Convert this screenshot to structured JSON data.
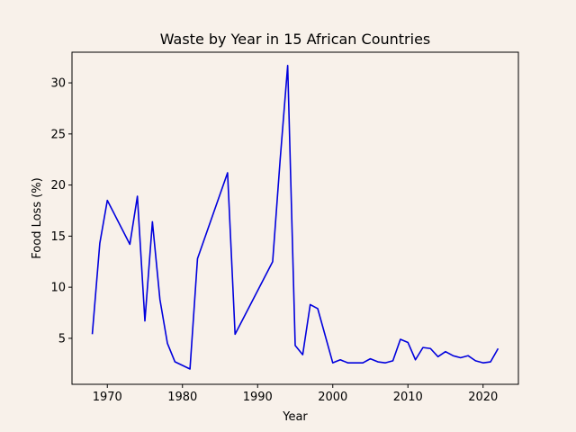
{
  "chart_data": {
    "type": "line",
    "title": "Waste by Year in 15 African Countries",
    "xlabel": "Year",
    "ylabel": "Food Loss (%)",
    "xlim": [
      1965.3,
      2024.7
    ],
    "ylim": [
      0.5,
      33
    ],
    "xticks": [
      1970,
      1980,
      1990,
      2000,
      2010,
      2020
    ],
    "yticks": [
      5,
      10,
      15,
      20,
      25,
      30
    ],
    "grid": false,
    "line_color": "#0000dd",
    "background": "#f8f1ea",
    "series": [
      {
        "x": [
          1968,
          1969,
          1970,
          1973,
          1974,
          1975,
          1976,
          1977,
          1978,
          1979,
          1981,
          1982,
          1986,
          1987,
          1992,
          1993,
          1994,
          1995,
          1996,
          1997,
          1998,
          2000,
          2001,
          2002,
          2003,
          2004,
          2005,
          2006,
          2007,
          2008,
          2009,
          2010,
          2011,
          2012,
          2013,
          2014,
          2015,
          2016,
          2017,
          2018,
          2019,
          2020,
          2021,
          2022
        ],
        "y": [
          5.4,
          14.3,
          18.5,
          14.2,
          18.9,
          6.7,
          16.4,
          8.8,
          4.5,
          2.7,
          2.0,
          12.8,
          21.2,
          5.4,
          12.5,
          22.5,
          31.7,
          4.3,
          3.4,
          8.3,
          7.9,
          2.6,
          2.9,
          2.6,
          2.6,
          2.6,
          3.0,
          2.7,
          2.6,
          2.8,
          4.9,
          4.6,
          2.9,
          4.1,
          4.0,
          3.2,
          3.7,
          3.3,
          3.1,
          3.3,
          2.8,
          2.6,
          2.7,
          4.0
        ]
      }
    ]
  }
}
